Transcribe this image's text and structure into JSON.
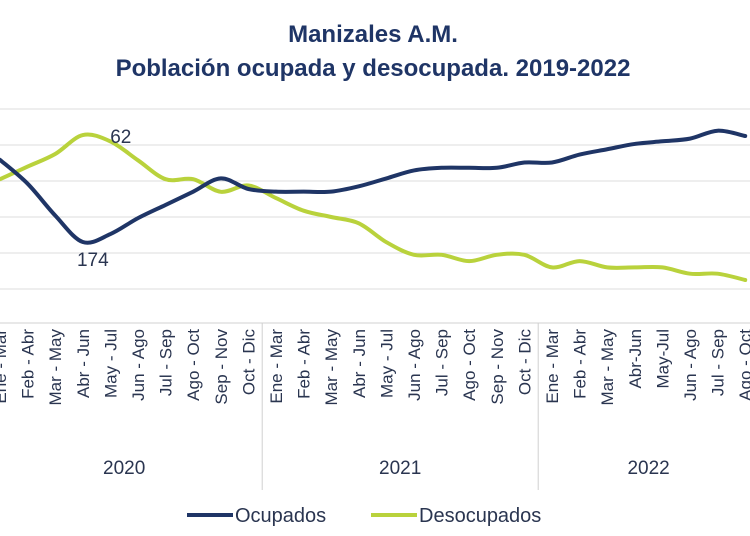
{
  "chart_data": {
    "type": "line",
    "title": "Manizales A.M.",
    "subtitle": "Población ocupada y desocupada. 2019-2022",
    "xlabel": "",
    "ylabel": "",
    "grid": true,
    "legend_position": "bottom",
    "categories": [
      "Ene - Mar",
      "Feb - Abr",
      "Mar - May",
      "Abr - Jun",
      "May - Jul",
      "Jun - Ago",
      "Jul - Sep",
      "Ago - Oct",
      "Sep - Nov",
      "Oct - Dic",
      "Ene - Mar",
      "Feb - Abr",
      "Mar - May",
      "Abr - Jun",
      "May - Jul",
      "Jun - Ago",
      "Jul - Sep",
      "Ago - Oct",
      "Sep - Nov",
      "Oct - Dic",
      "Ene - Mar",
      "Feb - Abr",
      "Mar - May",
      "Abr-Jun",
      "May-Jul",
      "Jun - Ago",
      "Jul - Sep",
      "Ago - Oct"
    ],
    "year_groups": [
      {
        "label": "2020",
        "start": 0,
        "end": 9
      },
      {
        "label": "2021",
        "start": 10,
        "end": 19
      },
      {
        "label": "2022",
        "start": 20,
        "end": 27
      }
    ],
    "series": [
      {
        "name": "Ocupados",
        "color": "#1f3566",
        "values": [
          205,
          196,
          184,
          174,
          177,
          183,
          188,
          193,
          198,
          194,
          193,
          193,
          193,
          195,
          198,
          201,
          202,
          202,
          202,
          204,
          204,
          207,
          209,
          211,
          212,
          213,
          216,
          214
        ]
      },
      {
        "name": "Desocupados",
        "color": "#b9d23c",
        "values": [
          55,
          57,
          59,
          62,
          61,
          58,
          55,
          55,
          53,
          54,
          52,
          50,
          49,
          48,
          45,
          43,
          43,
          42,
          43,
          43,
          41,
          42,
          41,
          41,
          41,
          40,
          40,
          39
        ]
      }
    ],
    "data_labels": [
      {
        "series": "Ocupados",
        "index": 3,
        "text": "174"
      },
      {
        "series": "Desocupados",
        "index": 3,
        "text": "62"
      }
    ]
  }
}
